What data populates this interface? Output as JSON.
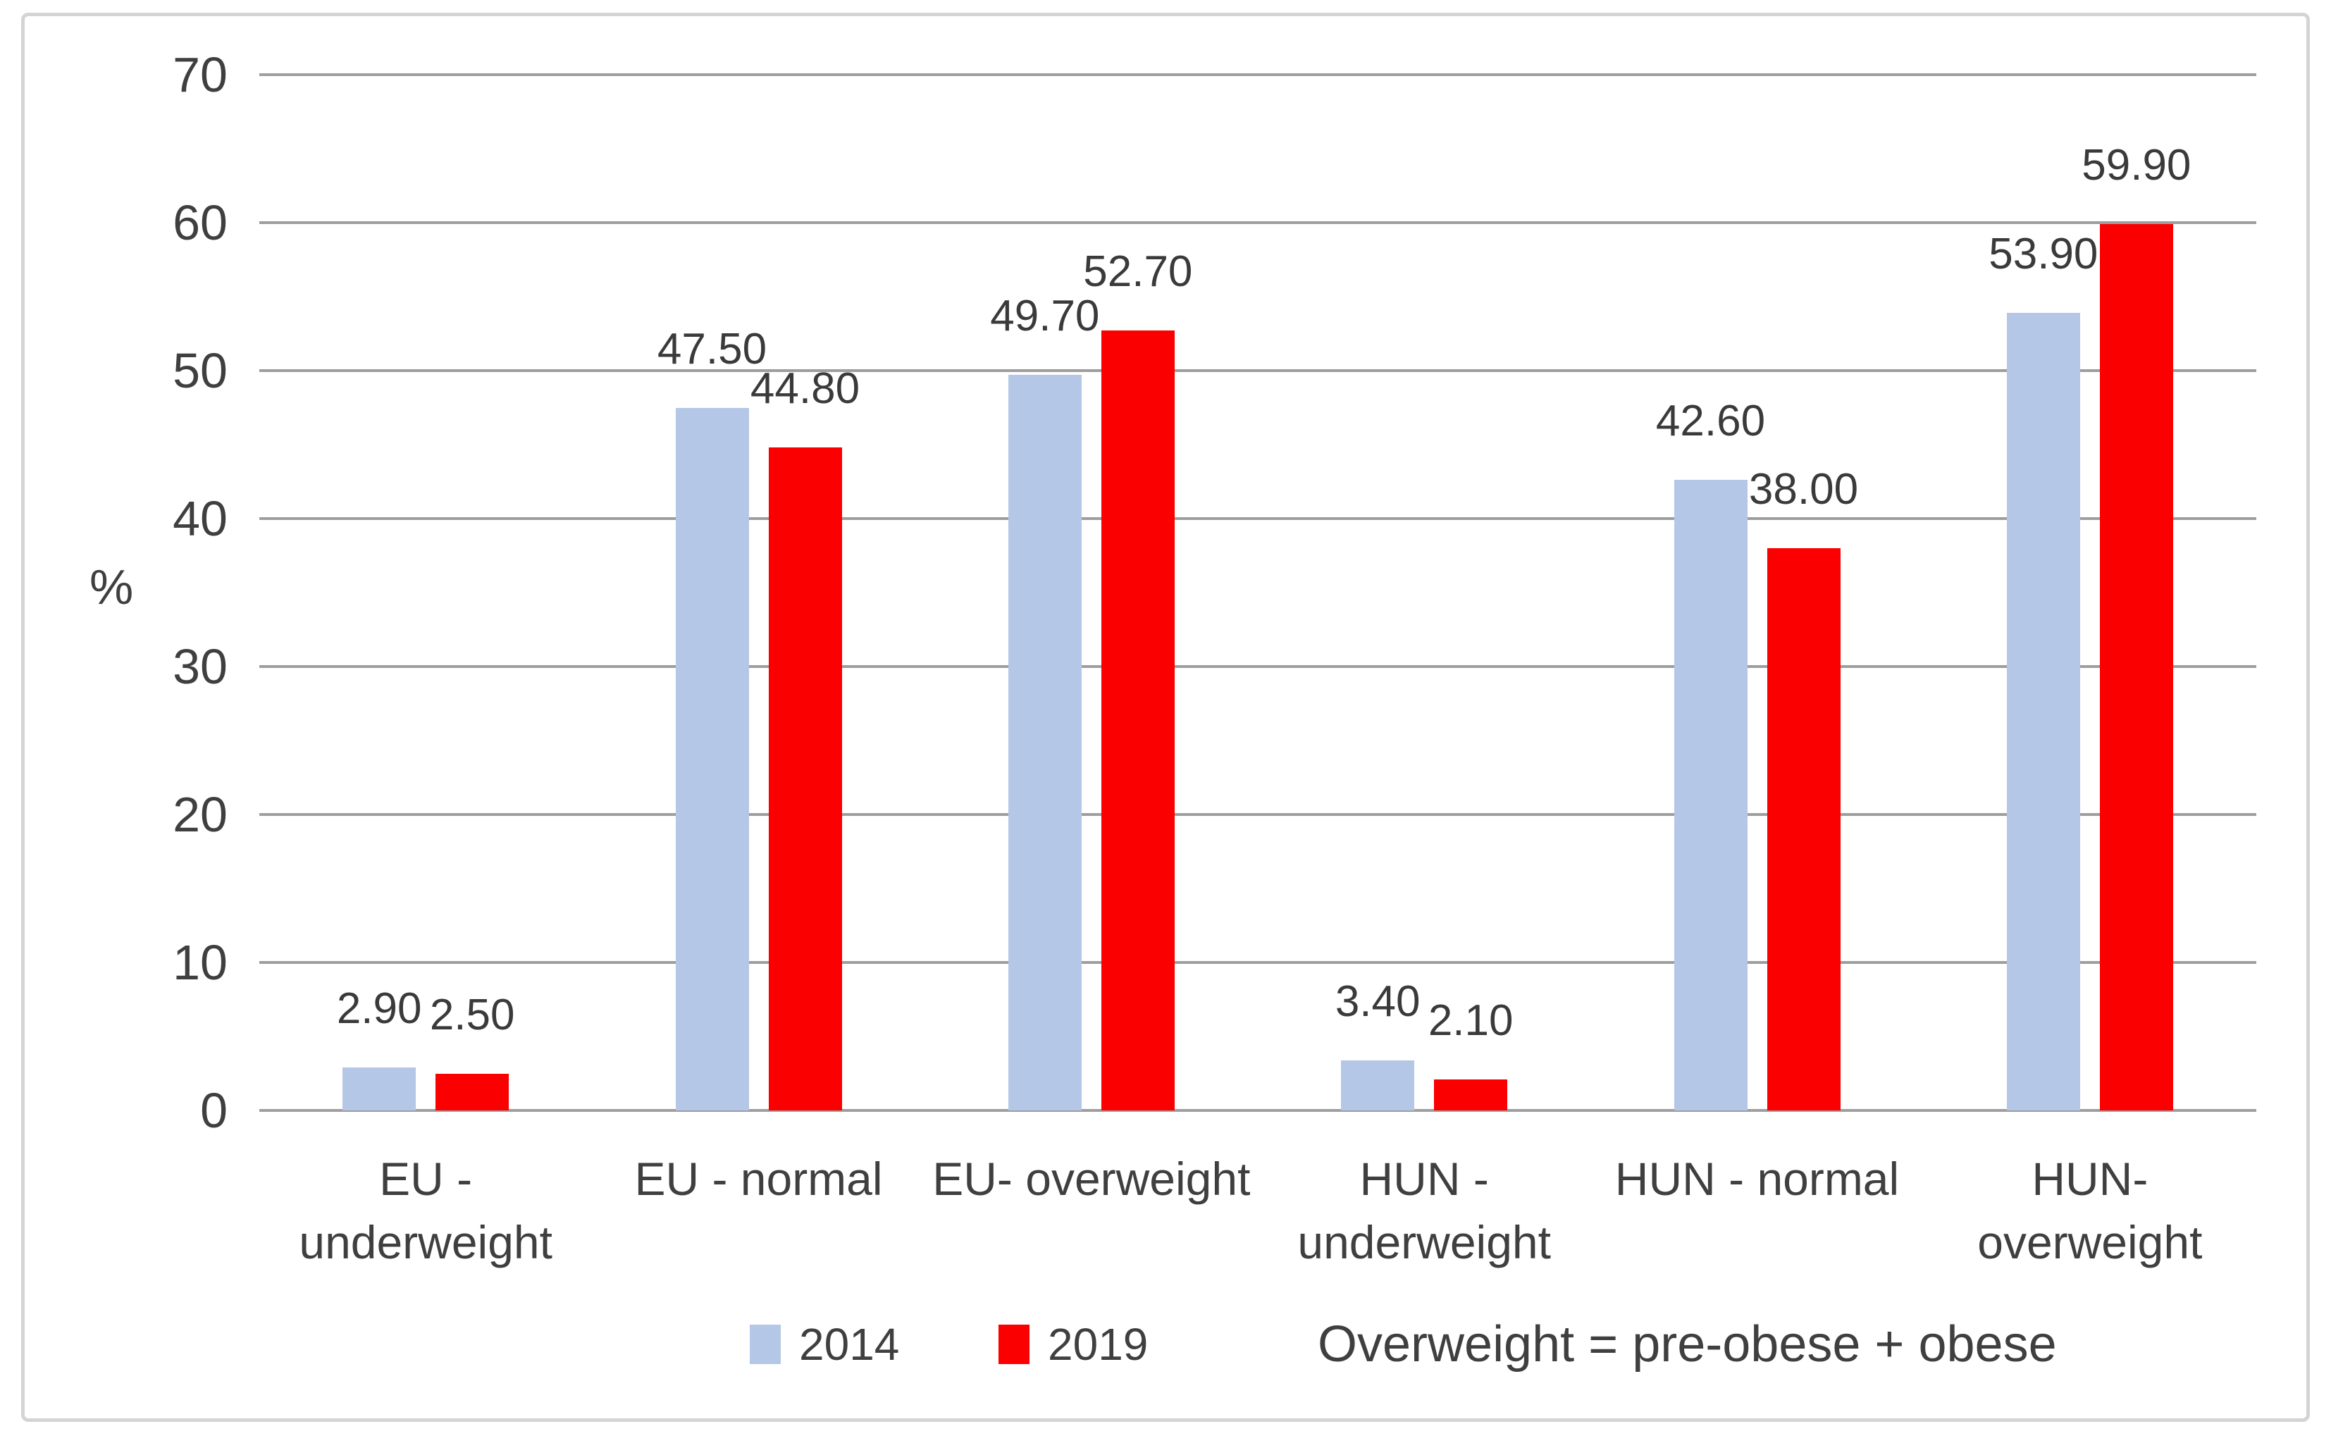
{
  "chart_data": {
    "type": "bar",
    "title": "",
    "xlabel": "",
    "ylabel": "%",
    "ylim": [
      0,
      70
    ],
    "yticks": [
      0,
      10,
      20,
      30,
      40,
      50,
      60,
      70
    ],
    "grid": true,
    "legend_position": "bottom",
    "value_label_format": "0.00",
    "categories": [
      "EU -\nunderweight",
      "EU - normal",
      "EU- overweight",
      "HUN -\nunderweight",
      "HUN - normal",
      "HUN-\noverweight"
    ],
    "series": [
      {
        "name": "2014",
        "color": "#b4c7e7",
        "values": [
          2.9,
          47.5,
          49.7,
          3.4,
          42.6,
          53.9
        ],
        "value_labels": [
          "2.90",
          "47.50",
          "49.70",
          "3.40",
          "42.60",
          "53.90"
        ]
      },
      {
        "name": "2019",
        "color": "#fb0000",
        "values": [
          2.5,
          44.8,
          52.7,
          2.1,
          38.0,
          59.9
        ],
        "value_labels": [
          "2.50",
          "44.80",
          "52.70",
          "2.10",
          "38.00",
          "59.90"
        ]
      }
    ],
    "note": "Overweight = pre-obese + obese"
  },
  "colors": {
    "gridline": "#9e9e9e",
    "text": "#3f3f3f",
    "frame_border": "#d4d4d4",
    "background": "#ffffff"
  }
}
